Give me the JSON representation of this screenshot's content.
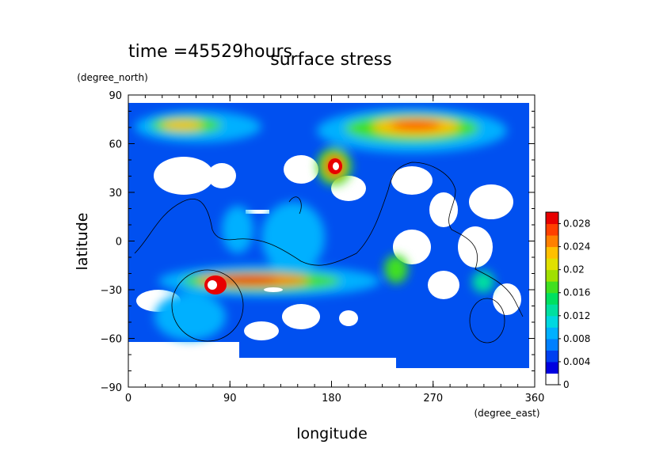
{
  "chart_data": {
    "type": "heatmap",
    "title": "surface stress",
    "annotation": "time =45529hours",
    "xlabel": "longitude",
    "ylabel": "latitude",
    "x_unit": "(degree_east)",
    "y_unit": "(degree_north)",
    "xlim": [
      0,
      360
    ],
    "ylim": [
      -90,
      90
    ],
    "x_ticks": [
      "0",
      "90",
      "180",
      "270",
      "360"
    ],
    "y_ticks": [
      "90",
      "60",
      "30",
      "0",
      "−30",
      "−60",
      "−90"
    ],
    "data_lat_range": [
      -85,
      85
    ],
    "colorbar": {
      "min": 0,
      "max": 0.03,
      "labels": [
        "0",
        "0.004",
        "0.008",
        "0.012",
        "0.016",
        "0.02",
        "0.024",
        "0.028"
      ],
      "colors": [
        "#ffffff",
        "#0000e0",
        "#0040f0",
        "#0080ff",
        "#00b0ff",
        "#00d8e0",
        "#00e0a0",
        "#00e060",
        "#40e020",
        "#a0e000",
        "#e0e000",
        "#ffc000",
        "#ff8000",
        "#ff4000",
        "#e80000"
      ]
    },
    "features": [
      {
        "lon": 60,
        "lat": 70,
        "value": 0.024
      },
      {
        "lon": 120,
        "lat": 70,
        "value": 0.01
      },
      {
        "lon": 255,
        "lat": 68,
        "value": 0.026
      },
      {
        "lon": 200,
        "lat": 75,
        "value": 0.012
      },
      {
        "lon": 180,
        "lat": 47,
        "value": 0.028
      },
      {
        "lon": 70,
        "lat": -27,
        "value": 0.03
      },
      {
        "lon": 130,
        "lat": -32,
        "value": 0.026
      },
      {
        "lon": 200,
        "lat": -37,
        "value": 0.014
      },
      {
        "lon": 230,
        "lat": -35,
        "value": 0.012
      },
      {
        "lon": 60,
        "lat": -50,
        "value": 0.01
      },
      {
        "lon": 320,
        "lat": -32,
        "value": 0.01
      }
    ]
  }
}
